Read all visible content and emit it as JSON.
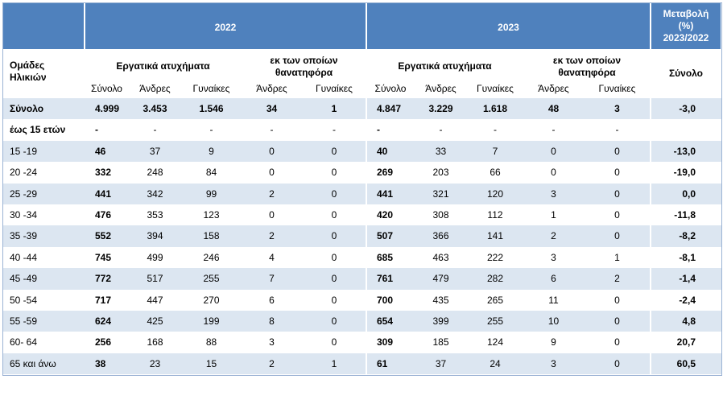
{
  "header": {
    "groups": [
      {
        "year": "2022",
        "accidents": "Εργατικά ατυχήματα",
        "accident_cols": [
          "Σύνολο",
          "Άνδρες",
          "Γυναίκες"
        ],
        "fatal": [
          "εκ των οποίων",
          "θανατηφόρα"
        ],
        "fatal_cols": [
          "Άνδρες",
          "Γυναίκες"
        ]
      },
      {
        "year": "2023",
        "accidents": "Εργατικά ατυχήματα",
        "accident_cols": [
          "Σύνολο",
          "Άνδρες",
          "Γυναίκες"
        ],
        "fatal": [
          "εκ των οποίων",
          "θανατηφόρα"
        ],
        "fatal_cols": [
          "Άνδρες",
          "Γυναίκες"
        ]
      }
    ],
    "change": [
      "Μεταβολή",
      "(%)",
      "2023/2022"
    ],
    "change_col": "Σύνολο",
    "age_groups": [
      "Ομάδες",
      "Ηλικιών"
    ]
  },
  "table": {
    "rows": [
      [
        "Σύνολο",
        "4.999",
        "3.453",
        "1.546",
        "34",
        "1",
        "4.847",
        "3.229",
        "1.618",
        "48",
        "3",
        "-3,0"
      ],
      [
        "έως 15 ετών",
        "-",
        "-",
        "-",
        "-",
        "-",
        "-",
        "-",
        "-",
        "-",
        "-",
        null
      ],
      [
        "15 -19",
        "46",
        "37",
        "9",
        "0",
        "0",
        "40",
        "33",
        "7",
        "0",
        "0",
        "-13,0"
      ],
      [
        "20 -24",
        "332",
        "248",
        "84",
        "0",
        "0",
        "269",
        "203",
        "66",
        "0",
        "0",
        "-19,0"
      ],
      [
        "25 -29",
        "441",
        "342",
        "99",
        "2",
        "0",
        "441",
        "321",
        "120",
        "3",
        "0",
        "0,0"
      ],
      [
        "30 -34",
        "476",
        "353",
        "123",
        "0",
        "0",
        "420",
        "308",
        "112",
        "1",
        "0",
        "-11,8"
      ],
      [
        "35 -39",
        "552",
        "394",
        "158",
        "2",
        "0",
        "507",
        "366",
        "141",
        "2",
        "0",
        "-8,2"
      ],
      [
        "40 -44",
        "745",
        "499",
        "246",
        "4",
        "0",
        "685",
        "463",
        "222",
        "3",
        "1",
        "-8,1"
      ],
      [
        "45 -49",
        "772",
        "517",
        "255",
        "7",
        "0",
        "761",
        "479",
        "282",
        "6",
        "2",
        "-1,4"
      ],
      [
        "50 -54",
        "717",
        "447",
        "270",
        "6",
        "0",
        "700",
        "435",
        "265",
        "11",
        "0",
        "-2,4"
      ],
      [
        "55 -59",
        "624",
        "425",
        "199",
        "8",
        "0",
        "654",
        "399",
        "255",
        "10",
        "0",
        "4,8"
      ],
      [
        "60- 64",
        "256",
        "168",
        "88",
        "3",
        "0",
        "309",
        "185",
        "124",
        "9",
        "0",
        "20,7"
      ],
      [
        "65 και άνω",
        "38",
        "23",
        "15",
        "2",
        "1",
        "61",
        "37",
        "24",
        "3",
        "0",
        "60,5"
      ]
    ]
  }
}
